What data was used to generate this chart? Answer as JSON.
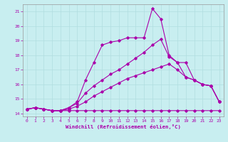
{
  "xlabel": "Windchill (Refroidissement éolien,°C)",
  "bg_color": "#c8eef0",
  "grid_color": "#b0dde0",
  "line_color": "#aa00aa",
  "tick_color": "#aa00aa",
  "xlim": [
    -0.5,
    23.5
  ],
  "ylim": [
    13.8,
    21.5
  ],
  "yticks": [
    14,
    15,
    16,
    17,
    18,
    19,
    20,
    21
  ],
  "xticks": [
    0,
    1,
    2,
    3,
    4,
    5,
    6,
    7,
    8,
    9,
    10,
    11,
    12,
    13,
    14,
    15,
    16,
    17,
    18,
    19,
    20,
    21,
    22,
    23
  ],
  "series": [
    [
      14.3,
      14.4,
      14.3,
      14.2,
      14.2,
      14.2,
      14.2,
      14.2,
      14.2,
      14.2,
      14.2,
      14.2,
      14.2,
      14.2,
      14.2,
      14.2,
      14.2,
      14.2,
      14.2,
      14.2,
      14.2,
      14.2,
      14.2,
      14.2
    ],
    [
      14.3,
      14.4,
      14.3,
      14.2,
      14.2,
      14.3,
      14.5,
      14.8,
      15.2,
      15.5,
      15.8,
      16.1,
      16.4,
      16.6,
      16.8,
      17.0,
      17.2,
      17.4,
      17.0,
      16.5,
      16.3,
      16.0,
      15.9,
      14.8
    ],
    [
      14.3,
      14.4,
      14.3,
      14.2,
      14.2,
      14.4,
      14.7,
      15.4,
      15.9,
      16.3,
      16.7,
      17.0,
      17.4,
      17.8,
      18.2,
      18.7,
      19.1,
      17.9,
      17.5,
      16.5,
      16.3,
      16.0,
      15.9,
      14.8
    ],
    [
      14.3,
      14.4,
      14.3,
      14.2,
      14.2,
      14.4,
      14.8,
      16.3,
      17.5,
      18.7,
      18.9,
      19.0,
      19.2,
      19.2,
      19.2,
      21.2,
      20.5,
      18.0,
      17.5,
      17.5,
      16.3,
      16.0,
      15.9,
      14.8
    ]
  ]
}
